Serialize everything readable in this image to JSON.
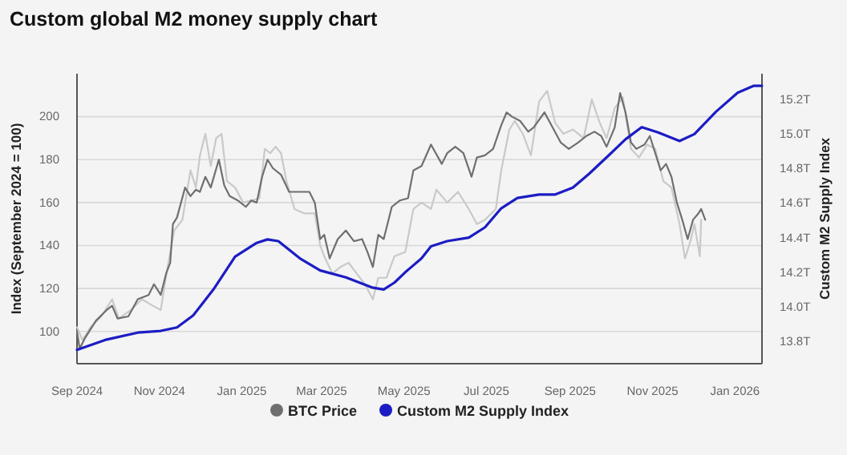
{
  "chart_data": {
    "type": "line",
    "title": "Custom global M2 money supply chart",
    "ylabel": "Index (September 2024 = 100)",
    "y2label": "Custom M2 Supply Index",
    "xlim": [
      "2024-09-01",
      "2026-01-21"
    ],
    "xticks": [
      {
        "value": "2024-09-01",
        "label": "Sep 2024"
      },
      {
        "value": "2024-11-01",
        "label": "Nov 2024"
      },
      {
        "value": "2025-01-01",
        "label": "Jan 2025"
      },
      {
        "value": "2025-03-01",
        "label": "Mar 2025"
      },
      {
        "value": "2025-05-01",
        "label": "May 2025"
      },
      {
        "value": "2025-07-01",
        "label": "Jul 2025"
      },
      {
        "value": "2025-09-01",
        "label": "Sep 2025"
      },
      {
        "value": "2025-11-01",
        "label": "Nov 2025"
      },
      {
        "value": "2026-01-01",
        "label": "Jan 2026"
      }
    ],
    "ylim": [
      85,
      220
    ],
    "yticks": [
      100,
      120,
      140,
      160,
      180,
      200
    ],
    "y2lim": [
      13.67,
      15.35
    ],
    "y2ticks": [
      {
        "value": 13.8,
        "label": "13.8T"
      },
      {
        "value": 14.0,
        "label": "14.0T"
      },
      {
        "value": 14.2,
        "label": "14.2T"
      },
      {
        "value": 14.4,
        "label": "14.4T"
      },
      {
        "value": 14.6,
        "label": "14.6T"
      },
      {
        "value": 14.8,
        "label": "14.8T"
      },
      {
        "value": 15.0,
        "label": "15.0T"
      },
      {
        "value": 15.2,
        "label": "15.2T"
      }
    ],
    "grid": "y",
    "legend": "bottom",
    "marker": "none",
    "line_style": "solid",
    "series": [
      {
        "color": "#c9c9c9",
        "x": [
          "2024-09-01",
          "2024-09-05",
          "2024-09-11",
          "2024-09-19",
          "2024-09-27",
          "2024-10-02",
          "2024-10-11",
          "2024-10-19",
          "2024-10-27",
          "2024-11-02",
          "2024-11-07",
          "2024-11-12",
          "2024-11-18",
          "2024-11-24",
          "2024-11-28",
          "2024-12-01",
          "2024-12-05",
          "2024-12-09",
          "2024-12-13",
          "2024-12-17",
          "2024-12-21",
          "2024-12-27",
          "2025-01-02",
          "2025-01-08",
          "2025-01-14",
          "2025-01-18",
          "2025-01-22",
          "2025-01-26",
          "2025-01-30",
          "2025-02-03",
          "2025-02-09",
          "2025-02-16",
          "2025-02-24",
          "2025-02-28",
          "2025-03-03",
          "2025-03-09",
          "2025-03-15",
          "2025-03-21",
          "2025-03-27",
          "2025-04-02",
          "2025-04-08",
          "2025-04-12",
          "2025-04-18",
          "2025-04-24",
          "2025-05-02",
          "2025-05-08",
          "2025-05-14",
          "2025-05-21",
          "2025-05-25",
          "2025-06-02",
          "2025-06-10",
          "2025-06-18",
          "2025-06-24",
          "2025-06-30",
          "2025-07-08",
          "2025-07-12",
          "2025-07-18",
          "2025-07-22",
          "2025-07-28",
          "2025-08-03",
          "2025-08-09",
          "2025-08-15",
          "2025-08-21",
          "2025-08-27",
          "2025-09-03",
          "2025-09-11",
          "2025-09-17",
          "2025-09-23",
          "2025-09-28",
          "2025-10-04",
          "2025-10-10",
          "2025-10-16",
          "2025-10-22",
          "2025-10-28",
          "2025-11-03",
          "2025-11-09",
          "2025-11-15",
          "2025-11-21",
          "2025-11-25",
          "2025-11-29",
          "2025-12-02",
          "2025-12-06",
          "2025-12-07"
        ],
        "values": [
          102,
          96,
          102,
          107,
          115,
          106,
          110,
          115,
          112,
          110,
          130,
          147,
          152,
          175,
          167,
          182,
          192,
          177,
          190,
          192,
          170,
          167,
          160,
          161,
          162,
          185,
          183,
          186,
          183,
          170,
          157,
          155,
          155,
          140,
          135,
          127,
          130,
          132,
          127,
          122,
          115,
          125,
          125,
          135,
          137,
          157,
          160,
          157,
          166,
          160,
          165,
          157,
          150,
          152,
          157,
          175,
          194,
          198,
          192,
          182,
          207,
          212,
          197,
          192,
          194,
          190,
          208,
          197,
          190,
          204,
          209,
          185,
          181,
          187,
          185,
          170,
          167,
          150,
          134,
          142,
          150,
          135,
          152
        ]
      },
      {
        "name": "BTC Price",
        "color": "#6f6f6f",
        "x": [
          "2024-09-01",
          "2024-09-03",
          "2024-09-07",
          "2024-09-15",
          "2024-09-23",
          "2024-09-27",
          "2024-10-01",
          "2024-10-09",
          "2024-10-16",
          "2024-10-24",
          "2024-10-28",
          "2024-11-02",
          "2024-11-06",
          "2024-11-09",
          "2024-11-11",
          "2024-11-14",
          "2024-11-20",
          "2024-11-24",
          "2024-11-28",
          "2024-12-01",
          "2024-12-05",
          "2024-12-09",
          "2024-12-15",
          "2024-12-19",
          "2024-12-23",
          "2024-12-29",
          "2025-01-04",
          "2025-01-08",
          "2025-01-12",
          "2025-01-16",
          "2025-01-20",
          "2025-01-24",
          "2025-01-30",
          "2025-02-05",
          "2025-02-13",
          "2025-02-20",
          "2025-02-24",
          "2025-02-28",
          "2025-03-03",
          "2025-03-07",
          "2025-03-13",
          "2025-03-19",
          "2025-03-25",
          "2025-03-31",
          "2025-04-04",
          "2025-04-08",
          "2025-04-12",
          "2025-04-16",
          "2025-04-22",
          "2025-04-28",
          "2025-05-04",
          "2025-05-08",
          "2025-05-14",
          "2025-05-21",
          "2025-05-29",
          "2025-06-02",
          "2025-06-08",
          "2025-06-14",
          "2025-06-20",
          "2025-06-24",
          "2025-06-30",
          "2025-07-06",
          "2025-07-12",
          "2025-07-16",
          "2025-07-20",
          "2025-07-26",
          "2025-08-01",
          "2025-08-05",
          "2025-08-13",
          "2025-08-19",
          "2025-08-25",
          "2025-08-31",
          "2025-09-07",
          "2025-09-13",
          "2025-09-19",
          "2025-09-24",
          "2025-09-28",
          "2025-10-04",
          "2025-10-08",
          "2025-10-12",
          "2025-10-16",
          "2025-10-20",
          "2025-10-26",
          "2025-10-30",
          "2025-11-03",
          "2025-11-07",
          "2025-11-11",
          "2025-11-15",
          "2025-11-19",
          "2025-11-23",
          "2025-11-27",
          "2025-12-01",
          "2025-12-05",
          "2025-12-07",
          "2025-12-10"
        ],
        "values": [
          100,
          92,
          97,
          105,
          110,
          112,
          106,
          107,
          115,
          117,
          122,
          117,
          127,
          132,
          150,
          153,
          167,
          163,
          166,
          165,
          172,
          167,
          180,
          168,
          163,
          161,
          158,
          161,
          160,
          172,
          180,
          176,
          173,
          165,
          165,
          165,
          160,
          143,
          145,
          134,
          143,
          147,
          142,
          143,
          137,
          130,
          145,
          143,
          158,
          161,
          162,
          175,
          177,
          187,
          178,
          183,
          186,
          183,
          172,
          181,
          182,
          185,
          196,
          202,
          200,
          198,
          193,
          195,
          202,
          195,
          188,
          185,
          188,
          191,
          193,
          191,
          186,
          195,
          211,
          202,
          188,
          185,
          187,
          191,
          183,
          175,
          178,
          172,
          160,
          152,
          143,
          152,
          155,
          157,
          152
        ]
      },
      {
        "name": "Custom M2 Supply Index",
        "color": "#1c1cc4",
        "axis": "y2",
        "x": [
          "2024-09-01",
          "2024-09-23",
          "2024-10-16",
          "2024-11-02",
          "2024-11-14",
          "2024-11-26",
          "2024-12-11",
          "2024-12-27",
          "2025-01-12",
          "2025-01-20",
          "2025-01-28",
          "2025-02-13",
          "2025-02-28",
          "2025-03-19",
          "2025-04-08",
          "2025-04-16",
          "2025-04-24",
          "2025-05-02",
          "2025-05-14",
          "2025-05-21",
          "2025-06-02",
          "2025-06-18",
          "2025-06-30",
          "2025-07-12",
          "2025-07-24",
          "2025-08-09",
          "2025-08-21",
          "2025-09-03",
          "2025-09-15",
          "2025-09-30",
          "2025-10-12",
          "2025-10-24",
          "2025-11-05",
          "2025-11-21",
          "2025-12-02",
          "2025-12-18",
          "2026-01-03",
          "2026-01-15",
          "2026-01-21"
        ],
        "values": [
          13.75,
          13.81,
          13.85,
          13.86,
          13.88,
          13.95,
          14.1,
          14.29,
          14.37,
          14.39,
          14.38,
          14.28,
          14.21,
          14.17,
          14.11,
          14.1,
          14.14,
          14.2,
          14.28,
          14.35,
          14.38,
          14.4,
          14.46,
          14.57,
          14.63,
          14.65,
          14.65,
          14.69,
          14.77,
          14.88,
          14.97,
          15.04,
          15.01,
          14.96,
          15.0,
          15.13,
          15.24,
          15.28,
          15.28
        ]
      }
    ]
  }
}
